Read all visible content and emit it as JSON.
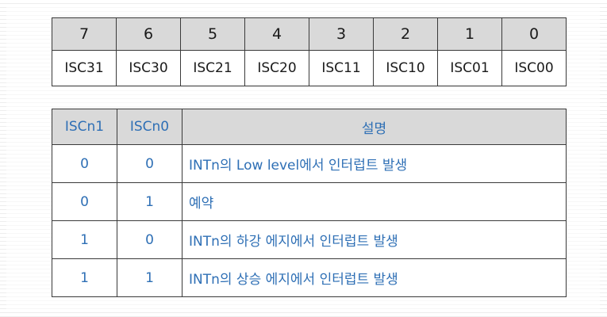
{
  "register_table": {
    "bit_numbers": [
      "7",
      "6",
      "5",
      "4",
      "3",
      "2",
      "1",
      "0"
    ],
    "bit_names": [
      "ISC31",
      "ISC30",
      "ISC21",
      "ISC20",
      "ISC11",
      "ISC10",
      "ISC01",
      "ISC00"
    ]
  },
  "mode_table": {
    "headers": [
      "ISCn1",
      "ISCn0",
      "설명"
    ],
    "rows": [
      {
        "iscn1": "0",
        "iscn0": "0",
        "description": "INTn의 Low level에서 인터럽트 발생"
      },
      {
        "iscn1": "0",
        "iscn0": "1",
        "description": "예약"
      },
      {
        "iscn1": "1",
        "iscn0": "0",
        "description": "INTn의 하강 에지에서 인터럽트 발생"
      },
      {
        "iscn1": "1",
        "iscn0": "1",
        "description": "INTn의 상승 에지에서 인터럽트 발생"
      }
    ]
  },
  "colors": {
    "header_fill": "#d9d9d9",
    "mode_text": "#2e6fb5",
    "border": "#3a3a3a"
  }
}
